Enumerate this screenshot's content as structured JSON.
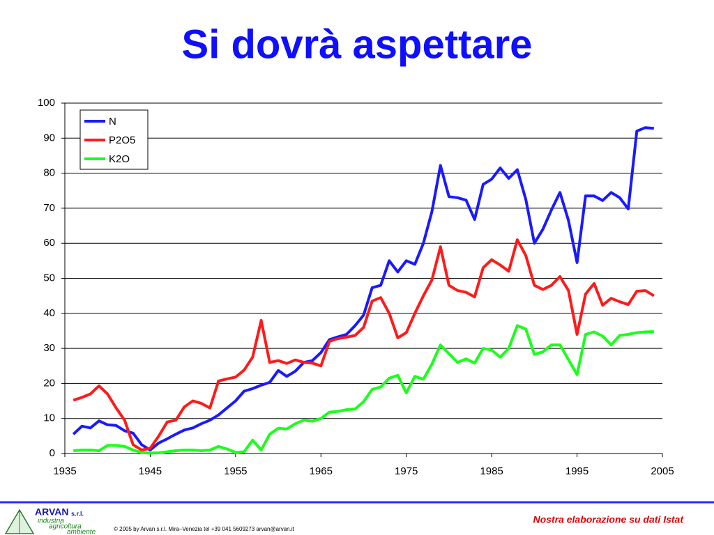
{
  "chart_data": {
    "type": "line",
    "title": "Si dovrà aspettare",
    "x": [
      1936,
      1937,
      1938,
      1939,
      1940,
      1941,
      1942,
      1943,
      1944,
      1945,
      1946,
      1947,
      1948,
      1949,
      1950,
      1951,
      1952,
      1953,
      1954,
      1955,
      1956,
      1957,
      1958,
      1959,
      1960,
      1961,
      1962,
      1963,
      1964,
      1965,
      1966,
      1967,
      1968,
      1969,
      1970,
      1971,
      1972,
      1973,
      1974,
      1975,
      1976,
      1977,
      1978,
      1979,
      1980,
      1981,
      1982,
      1983,
      1984,
      1985,
      1986,
      1987,
      1988,
      1989,
      1990,
      1991,
      1992,
      1993,
      1994,
      1995,
      1996,
      1997,
      1998,
      1999,
      2000,
      2001,
      2002,
      2003,
      2004
    ],
    "series": [
      {
        "name": "N",
        "color": "#1a1aff",
        "values": [
          5.5,
          7.8,
          7.3,
          9.3,
          8.2,
          8.0,
          6.5,
          5.8,
          2.5,
          1.0,
          3.0,
          4.2,
          5.5,
          6.7,
          7.3,
          8.5,
          9.5,
          11.0,
          13.0,
          15.0,
          17.8,
          18.5,
          19.5,
          20.3,
          23.7,
          22.0,
          23.5,
          26.0,
          26.5,
          28.8,
          32.5,
          33.3,
          34.0,
          36.5,
          39.5,
          47.3,
          48.0,
          55.0,
          51.8,
          55.0,
          54.0,
          60.0,
          69.0,
          82.2,
          73.3,
          73.0,
          72.3,
          66.8,
          76.8,
          78.3,
          81.5,
          78.5,
          81.0,
          72.5,
          60.0,
          64.0,
          69.5,
          74.5,
          66.5,
          54.5,
          73.5,
          73.5,
          72.2,
          74.5,
          73.0,
          69.8,
          92.0,
          93.0,
          92.8
        ]
      },
      {
        "name": "P2O5",
        "color": "#ff1a1a",
        "values": [
          15.2,
          16.0,
          17.0,
          19.3,
          17.0,
          13.0,
          9.5,
          2.5,
          1.0,
          1.5,
          5.0,
          9.0,
          9.5,
          13.3,
          15.0,
          14.3,
          13.0,
          20.7,
          21.3,
          21.8,
          23.8,
          27.5,
          38.0,
          26.0,
          26.5,
          25.7,
          26.7,
          26.0,
          25.8,
          25.0,
          32.0,
          32.8,
          33.2,
          33.7,
          36.0,
          43.5,
          44.5,
          40.0,
          33.0,
          34.5,
          40.0,
          45.0,
          49.5,
          59.0,
          48.0,
          46.5,
          46.0,
          44.7,
          53.0,
          55.3,
          53.8,
          52.0,
          61.0,
          56.5,
          48.0,
          46.8,
          48.0,
          50.5,
          46.5,
          34.0,
          45.5,
          48.5,
          42.3,
          44.3,
          43.3,
          42.5,
          46.3,
          46.5,
          45.0
        ]
      },
      {
        "name": "K2O",
        "color": "#1aff1a",
        "values": [
          0.8,
          1.0,
          1.0,
          0.8,
          2.3,
          2.3,
          2.0,
          1.0,
          0.3,
          0.1,
          0.2,
          0.5,
          0.8,
          1.0,
          1.0,
          0.8,
          1.0,
          2.0,
          1.3,
          0.3,
          0.5,
          3.8,
          1.0,
          5.5,
          7.2,
          7.0,
          8.5,
          9.5,
          9.2,
          10.0,
          11.8,
          12.0,
          12.5,
          12.7,
          14.8,
          18.3,
          19.0,
          21.5,
          22.3,
          17.3,
          22.0,
          21.2,
          25.5,
          31.0,
          28.5,
          26.0,
          27.0,
          25.8,
          30.0,
          29.5,
          27.5,
          30.0,
          36.5,
          35.5,
          28.3,
          29.0,
          31.0,
          31.0,
          26.8,
          22.5,
          34.0,
          34.7,
          33.5,
          31.0,
          33.7,
          34.0,
          34.5,
          34.7,
          34.8
        ]
      }
    ],
    "xlim": [
      1935,
      2005
    ],
    "xticks": [
      1935,
      1945,
      1955,
      1965,
      1975,
      1985,
      1995,
      2005
    ],
    "ylim": [
      0,
      100
    ],
    "yticks": [
      0,
      10,
      20,
      30,
      40,
      50,
      60,
      70,
      80,
      90,
      100
    ],
    "grid": true,
    "legend": "upper-left"
  },
  "footer": {
    "company": "ARVAN",
    "company_suffix": "s.r.l.",
    "tagline": [
      "industria",
      "agricoltura",
      "ambiente"
    ],
    "copyright": "© 2005 by Arvan s.r.l. Mira–Venezia tel +39 041 5609273 arvan@arvan.it",
    "source": "Nostra elaborazione su dati Istat"
  }
}
